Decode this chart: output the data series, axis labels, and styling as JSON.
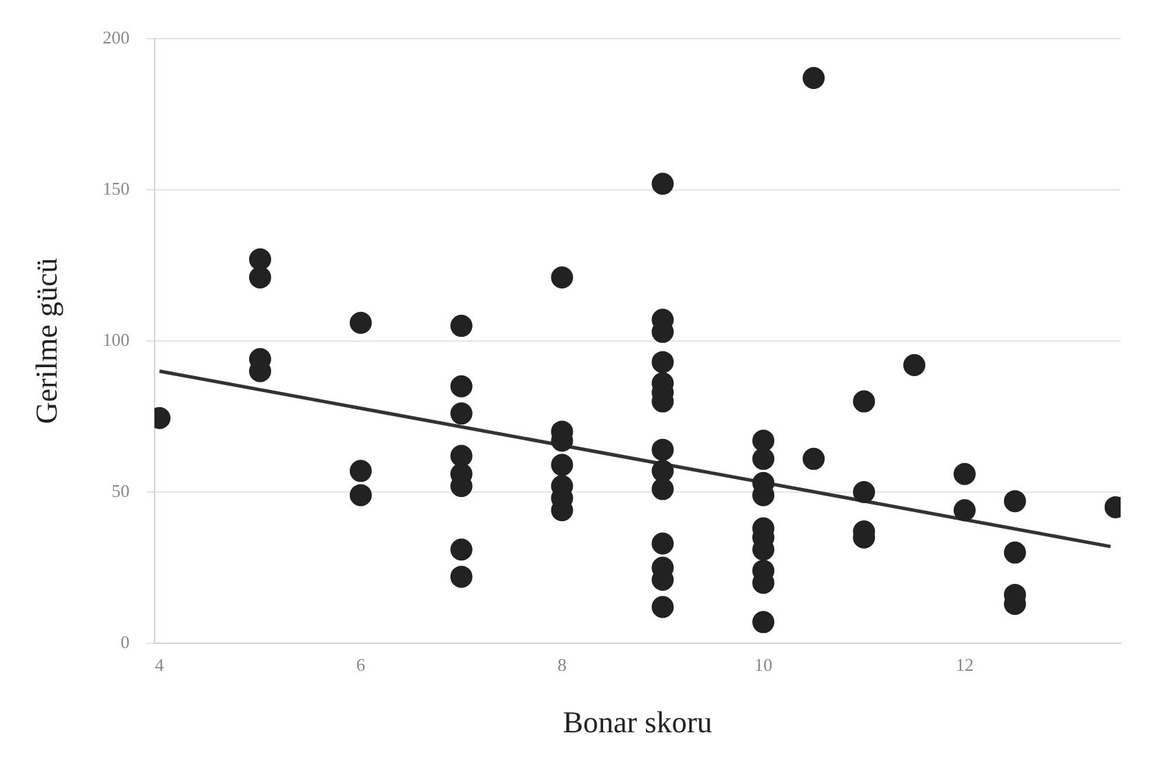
{
  "chart_data": {
    "type": "scatter",
    "xlabel": "Bonar skoru",
    "ylabel": "Gerilme gücü",
    "xlim": [
      3.95,
      13.55
    ],
    "xticks": [
      4,
      6,
      8,
      10,
      12
    ],
    "ylim": [
      0,
      200
    ],
    "yticks": [
      0,
      50,
      100,
      150,
      200
    ],
    "grid": "y",
    "legend": false,
    "marker": "circle",
    "series": [
      {
        "color": "#222222",
        "x": [
          4,
          5,
          5,
          5,
          5,
          6,
          6,
          6,
          7,
          7,
          7,
          7,
          7,
          7,
          7,
          7,
          8,
          8,
          8,
          8,
          8,
          8,
          8,
          9,
          9,
          9,
          9,
          9,
          9,
          9,
          9,
          9,
          9,
          9,
          9,
          9,
          9,
          10,
          10,
          10,
          10,
          10,
          10,
          10,
          10,
          10,
          10,
          10.5,
          10.5,
          11,
          11,
          11,
          11,
          11.5,
          12,
          12,
          12.5,
          12.5,
          12.5,
          12.5,
          13.5
        ],
        "values": [
          74.5,
          127,
          121,
          94,
          90,
          106,
          57,
          49,
          105,
          85,
          76,
          62,
          56,
          52,
          31,
          22,
          121,
          70,
          67,
          59,
          52,
          48,
          44,
          152,
          107,
          103,
          93,
          86,
          83,
          80,
          64,
          57,
          51,
          33,
          25,
          21,
          12,
          67,
          61,
          53,
          49,
          38,
          35,
          31,
          24,
          20,
          7,
          187,
          61,
          80,
          50,
          37,
          35,
          92,
          56,
          44,
          47,
          30,
          16,
          13,
          45
        ]
      },
      {
        "type": "line",
        "color": "#333333",
        "x": [
          4,
          13.45
        ],
        "values": [
          90,
          32
        ],
        "marker": "none"
      }
    ]
  }
}
